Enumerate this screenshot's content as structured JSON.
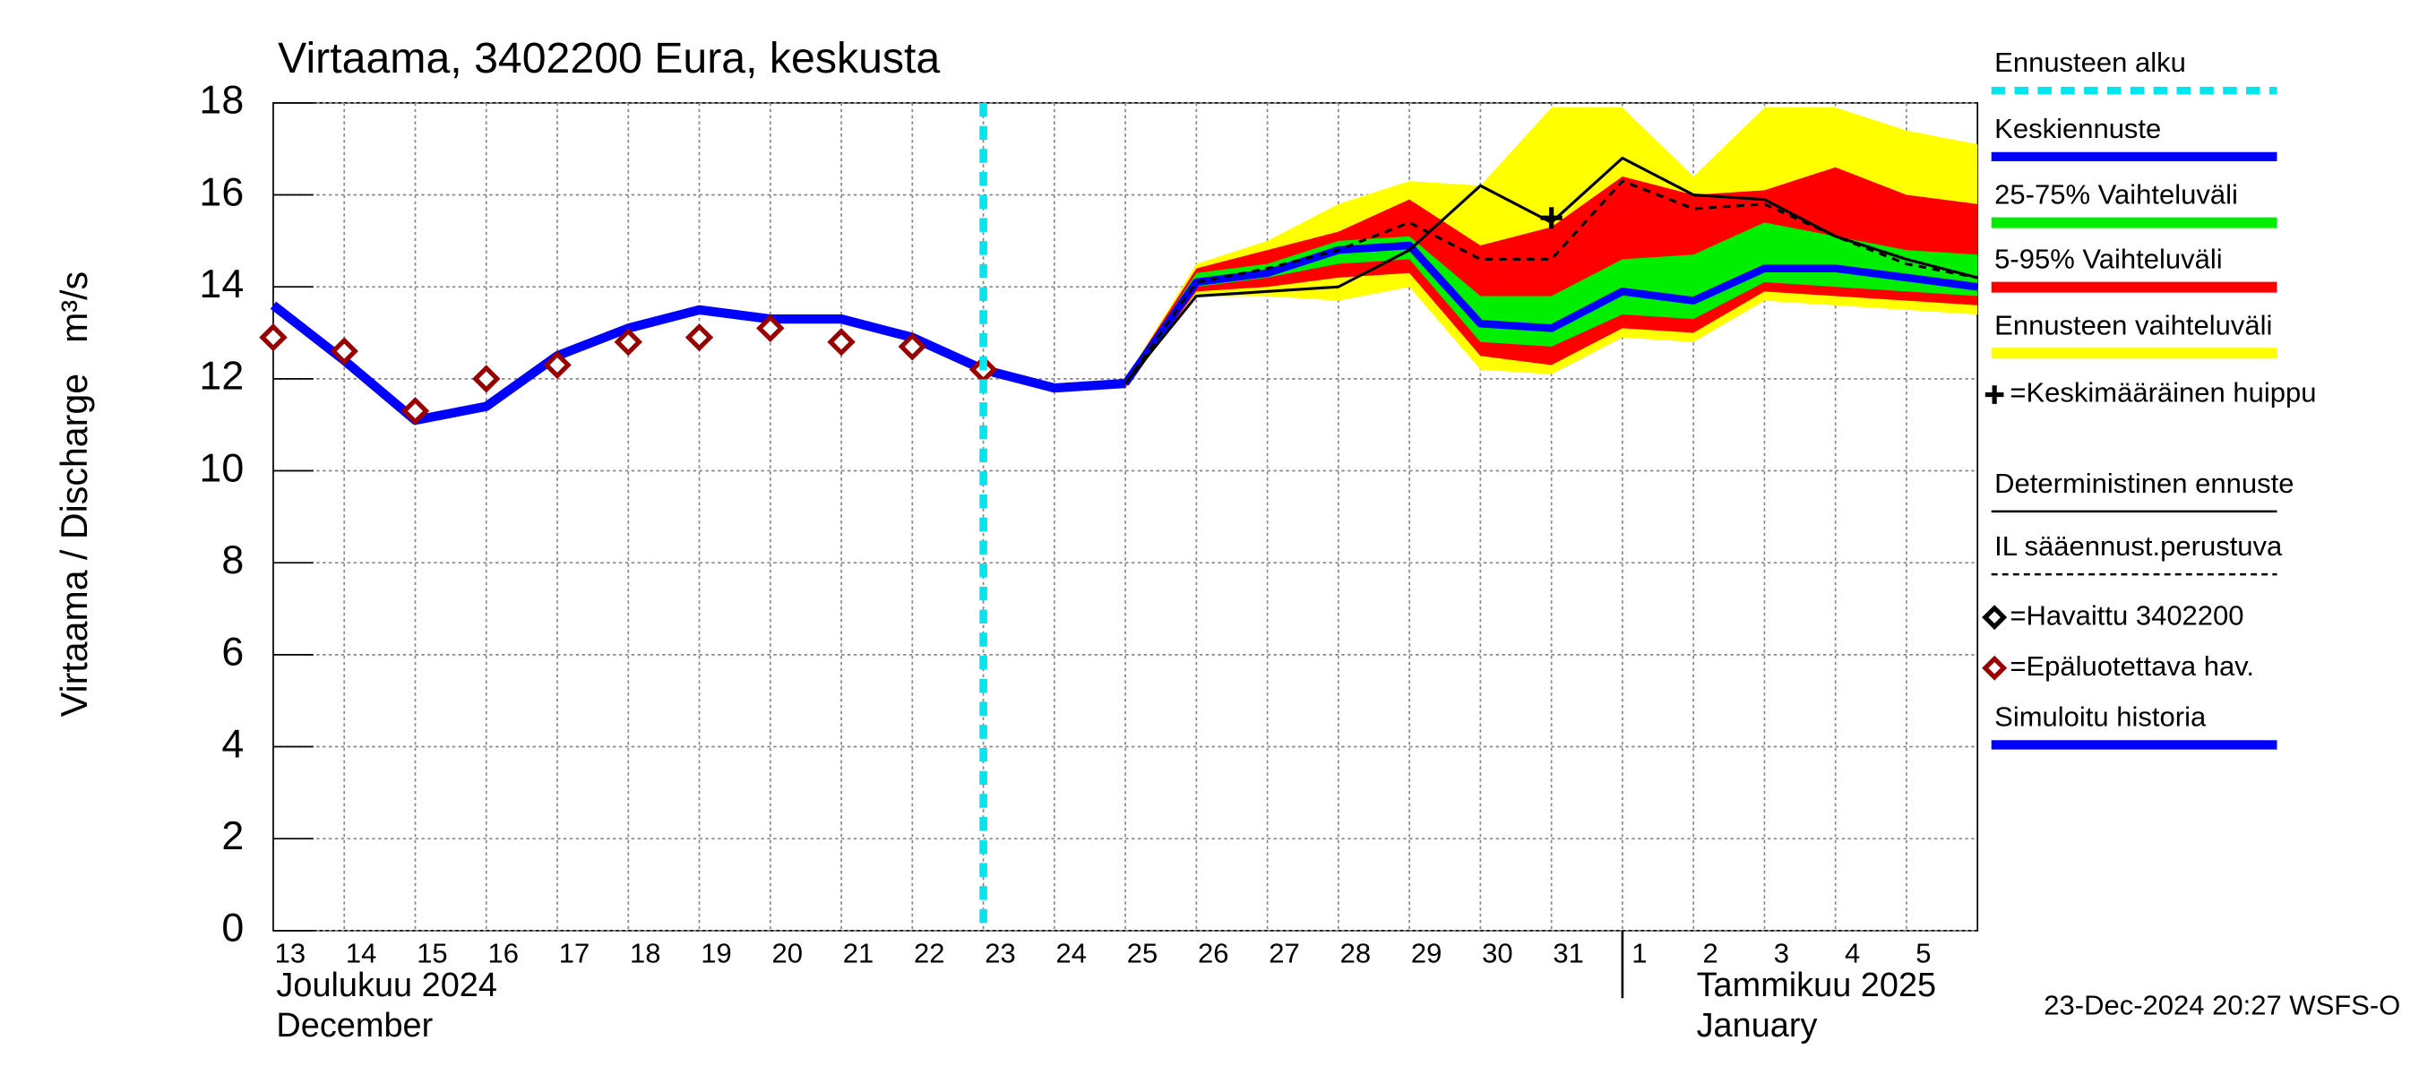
{
  "chart_data": {
    "type": "line",
    "title": "Virtaama, 3402200 Eura, keskusta",
    "ylabel": "Virtaama / Discharge",
    "yunit": "m³/s",
    "categories": [
      "13",
      "14",
      "15",
      "16",
      "17",
      "18",
      "19",
      "20",
      "21",
      "22",
      "23",
      "24",
      "25",
      "26",
      "27",
      "28",
      "29",
      "30",
      "31",
      "1",
      "2",
      "3",
      "4",
      "5",
      null
    ],
    "month_labels": [
      {
        "fi": "Joulukuu  2024",
        "en": "December",
        "start": "13"
      },
      {
        "fi": "Tammikuu  2025",
        "en": "January",
        "start": "1"
      }
    ],
    "ylim": [
      0,
      18
    ],
    "yticks": [
      0,
      2,
      4,
      6,
      8,
      10,
      12,
      14,
      16,
      18
    ],
    "grid": true,
    "forecast_start": {
      "name": "Ennusteen alku",
      "color": "#00e5ee",
      "at": "23"
    },
    "series": [
      {
        "name": "Keskiennuste",
        "style": "line",
        "color": "#0000ff",
        "width": 5,
        "values": [
          null,
          null,
          null,
          null,
          null,
          null,
          null,
          null,
          null,
          null,
          null,
          null,
          11.9,
          14.1,
          14.3,
          14.8,
          14.9,
          13.2,
          13.1,
          13.9,
          13.7,
          14.4,
          14.4,
          14.2,
          14.0
        ]
      },
      {
        "name": "25-75% Vaihteluväli",
        "style": "band",
        "color": "#00ee00",
        "values": [
          null,
          null,
          null,
          null,
          null,
          null,
          null,
          null,
          null,
          null,
          null,
          null,
          11.95,
          14.3,
          14.5,
          15.0,
          15.1,
          13.8,
          13.8,
          14.6,
          14.7,
          15.4,
          15.1,
          14.8,
          14.7
        ],
        "low": [
          null,
          null,
          null,
          null,
          null,
          null,
          null,
          null,
          null,
          null,
          null,
          null,
          11.9,
          14.0,
          14.2,
          14.5,
          14.6,
          12.8,
          12.7,
          13.4,
          13.3,
          14.1,
          14.0,
          13.9,
          13.8
        ]
      },
      {
        "name": "5-95% Vaihteluväli",
        "style": "band",
        "color": "#ff0000",
        "values": [
          null,
          null,
          null,
          null,
          null,
          null,
          null,
          null,
          null,
          null,
          null,
          null,
          12.0,
          14.4,
          14.8,
          15.2,
          15.9,
          14.9,
          15.3,
          16.4,
          16.0,
          16.1,
          16.6,
          16.0,
          15.8
        ],
        "low": [
          null,
          null,
          null,
          null,
          null,
          null,
          null,
          null,
          null,
          null,
          null,
          null,
          11.8,
          13.9,
          14.0,
          14.2,
          14.3,
          12.5,
          12.3,
          13.1,
          13.0,
          13.9,
          13.8,
          13.7,
          13.6
        ]
      },
      {
        "name": "Ennusteen vaihteluväli",
        "style": "band",
        "color": "#ffff00",
        "values": [
          null,
          null,
          null,
          null,
          null,
          null,
          null,
          null,
          null,
          null,
          null,
          null,
          12.0,
          14.5,
          15.0,
          15.8,
          16.3,
          16.2,
          17.9,
          17.9,
          16.4,
          17.9,
          17.9,
          17.4,
          17.1
        ],
        "low": [
          null,
          null,
          null,
          null,
          null,
          null,
          null,
          null,
          null,
          null,
          null,
          null,
          11.8,
          13.8,
          13.8,
          13.7,
          14.0,
          12.2,
          12.1,
          12.9,
          12.8,
          13.7,
          13.6,
          13.5,
          13.4
        ]
      },
      {
        "name": "=Keskimääräinen huippu",
        "style": "cross",
        "color": "#000000",
        "values": [
          null,
          null,
          null,
          null,
          null,
          null,
          null,
          null,
          null,
          null,
          null,
          null,
          null,
          null,
          null,
          null,
          null,
          null,
          15.5,
          null,
          null,
          null,
          null,
          null,
          null
        ]
      },
      {
        "name": "Deterministinen ennuste",
        "style": "line",
        "color": "#000000",
        "width": 1.8,
        "values": [
          null,
          null,
          null,
          null,
          null,
          null,
          null,
          null,
          null,
          null,
          null,
          null,
          11.9,
          13.8,
          13.9,
          14.0,
          14.8,
          16.2,
          15.4,
          16.8,
          16.0,
          15.9,
          15.1,
          14.6,
          14.2
        ]
      },
      {
        "name": "IL sääennust.perustuva",
        "style": "dashed",
        "color": "#000000",
        "width": 1.8,
        "values": [
          null,
          null,
          null,
          null,
          null,
          null,
          null,
          null,
          null,
          null,
          null,
          null,
          11.9,
          14.1,
          14.4,
          14.8,
          15.4,
          14.6,
          14.6,
          16.3,
          15.7,
          15.8,
          15.1,
          14.5,
          14.2
        ]
      },
      {
        "name": "=Havaittu 3402200",
        "style": "diamond",
        "color": "#000000"
      },
      {
        "name": "=Epäluotettava hav.",
        "style": "diamond",
        "color": "#990000",
        "values": [
          12.9,
          12.6,
          11.3,
          12.0,
          12.3,
          12.8,
          12.9,
          13.1,
          12.8,
          12.7,
          12.2,
          null,
          null,
          null,
          null,
          null,
          null,
          null,
          null,
          null,
          null,
          null,
          null,
          null,
          null
        ]
      },
      {
        "name": "Simuloitu historia",
        "style": "line",
        "color": "#0000ff",
        "width": 6,
        "values": [
          13.6,
          12.4,
          11.1,
          11.4,
          12.5,
          13.1,
          13.5,
          13.3,
          13.3,
          12.9,
          12.2,
          11.8,
          11.9,
          null,
          null,
          null,
          null,
          null,
          null,
          null,
          null,
          null,
          null,
          null,
          null
        ]
      }
    ],
    "footer": "23-Dec-2024 20:27 WSFS-O"
  }
}
